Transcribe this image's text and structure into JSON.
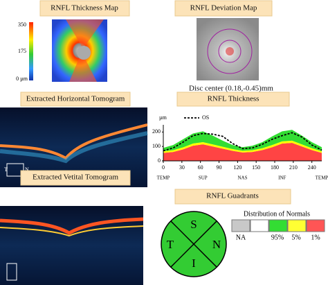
{
  "thickness_map": {
    "title": "RNFL Thickness Map",
    "scale_labels": [
      "350",
      "175",
      "0 µm"
    ]
  },
  "deviation_map": {
    "title": "RNFL Deviation Map",
    "caption": "Disc center (0.18,-0.45)mm"
  },
  "horizontal_tomogram": {
    "title": "Extracted Horizontal Tomogram",
    "orientation": [
      "T",
      "N"
    ]
  },
  "vertical_tomogram": {
    "title": "Extracted Vetital Tomogram"
  },
  "quadrants": {
    "title": "RNFL Guadrants",
    "labels": [
      "S",
      "T",
      "N",
      "I"
    ],
    "color": "#33cc33",
    "legend_title": "Distribution of Normals",
    "legend": [
      {
        "label": "NA",
        "color": "#c8c8c8"
      },
      {
        "label": "95%",
        "color": "#33dd33"
      },
      {
        "label": "5%",
        "color": "#ffff33"
      },
      {
        "label": "1%",
        "color": "#ff5555"
      }
    ]
  },
  "chart_data": {
    "type": "area",
    "title": "RNFL Thickness",
    "y_label": "µm",
    "x": [
      0,
      16,
      32,
      48,
      64,
      80,
      96,
      112,
      128,
      144,
      160,
      176,
      192,
      208,
      224,
      240,
      256
    ],
    "series": [
      {
        "color": "#ff4444",
        "values": [
          55,
          62,
          80,
          105,
          115,
          100,
          85,
          70,
          58,
          62,
          75,
          95,
          120,
          125,
          100,
          75,
          55
        ]
      },
      {
        "color": "#ffff00",
        "values": [
          12,
          12,
          14,
          15,
          15,
          14,
          13,
          12,
          12,
          12,
          13,
          15,
          15,
          15,
          14,
          13,
          12
        ]
      },
      {
        "color": "#33dd33",
        "values": [
          23,
          36,
          56,
          70,
          75,
          61,
          42,
          28,
          25,
          31,
          42,
          60,
          70,
          75,
          61,
          42,
          28
        ]
      },
      {
        "name": "OS",
        "type": "line",
        "dashed": true,
        "color": "#000000",
        "values": [
          70,
          90,
          130,
          175,
          190,
          185,
          170,
          120,
          85,
          90,
          115,
          150,
          175,
          195,
          165,
          110,
          75
        ]
      }
    ],
    "xlim": [
      0,
      256
    ],
    "xticks": [
      0,
      30,
      60,
      90,
      120,
      150,
      180,
      210,
      240
    ],
    "sector_labels": [
      {
        "value": 0,
        "label": "TEMP"
      },
      {
        "value": 64,
        "label": "SUP"
      },
      {
        "value": 128,
        "label": "NAS"
      },
      {
        "value": 192,
        "label": "INF"
      },
      {
        "value": 256,
        "label": "TEMP"
      }
    ],
    "ylim": [
      0,
      250
    ],
    "yticks": [
      0,
      100,
      200
    ]
  }
}
